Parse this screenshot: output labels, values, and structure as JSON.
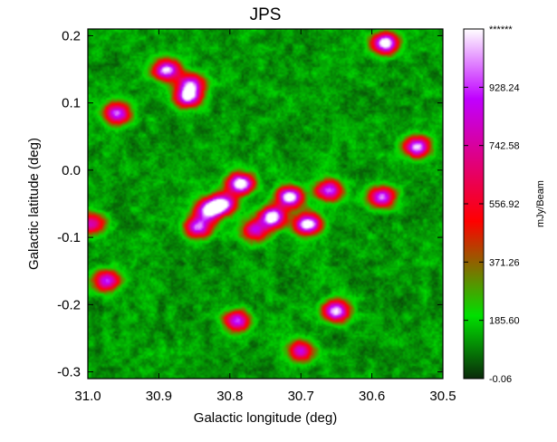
{
  "chart_data": {
    "type": "heatmap",
    "title": "JPS",
    "xlabel": "Galactic longitude (deg)",
    "ylabel": "Galactic latitude (deg)",
    "xlim": [
      31.0,
      30.5
    ],
    "ylim": [
      -0.31,
      0.21
    ],
    "x_ticks": [
      "31.0",
      "30.9",
      "30.8",
      "30.7",
      "30.6",
      "30.5"
    ],
    "y_ticks": [
      "0.2",
      "0.1",
      "0.0",
      "-0.1",
      "-0.2",
      "-0.3"
    ],
    "x_tick_values": [
      31.0,
      30.9,
      30.8,
      30.7,
      30.6,
      30.5
    ],
    "y_tick_values": [
      0.2,
      0.1,
      0.0,
      -0.1,
      -0.2,
      -0.3
    ],
    "colorbar": {
      "label": "mJy/Beam",
      "ticks": [
        "******",
        "928.24",
        "742.58",
        "556.92",
        "371.26",
        "185.60",
        "-0.06"
      ],
      "tick_values": [
        1113.9,
        928.24,
        742.58,
        556.92,
        371.26,
        185.6,
        -0.06
      ],
      "range": [
        -0.06,
        1113.9
      ],
      "colors": [
        "#0a2a0a",
        "#00e000",
        "#ff0000",
        "#c000ff",
        "#ffffff"
      ]
    },
    "sources": [
      {
        "l": 30.785,
        "b": -0.02,
        "peak": 1113.9
      },
      {
        "l": 30.715,
        "b": -0.04,
        "peak": 1113.9
      },
      {
        "l": 30.69,
        "b": -0.08,
        "peak": 1113.9
      },
      {
        "l": 30.74,
        "b": -0.07,
        "peak": 1113.9
      },
      {
        "l": 30.81,
        "b": -0.05,
        "peak": 1050
      },
      {
        "l": 30.83,
        "b": -0.06,
        "peak": 1000
      },
      {
        "l": 30.66,
        "b": -0.03,
        "peak": 900
      },
      {
        "l": 30.58,
        "b": 0.19,
        "peak": 1113.9
      },
      {
        "l": 30.86,
        "b": 0.11,
        "peak": 1000
      },
      {
        "l": 30.89,
        "b": 0.15,
        "peak": 1000
      },
      {
        "l": 30.855,
        "b": 0.13,
        "peak": 800
      },
      {
        "l": 30.96,
        "b": 0.085,
        "peak": 900
      },
      {
        "l": 30.535,
        "b": 0.035,
        "peak": 950
      },
      {
        "l": 30.585,
        "b": -0.04,
        "peak": 900
      },
      {
        "l": 30.845,
        "b": -0.085,
        "peak": 900
      },
      {
        "l": 30.765,
        "b": -0.09,
        "peak": 700
      },
      {
        "l": 30.65,
        "b": -0.21,
        "peak": 1000
      },
      {
        "l": 30.79,
        "b": -0.225,
        "peak": 800
      },
      {
        "l": 30.7,
        "b": -0.27,
        "peak": 700
      },
      {
        "l": 30.975,
        "b": -0.165,
        "peak": 800
      },
      {
        "l": 30.995,
        "b": -0.08,
        "peak": 650
      }
    ]
  }
}
